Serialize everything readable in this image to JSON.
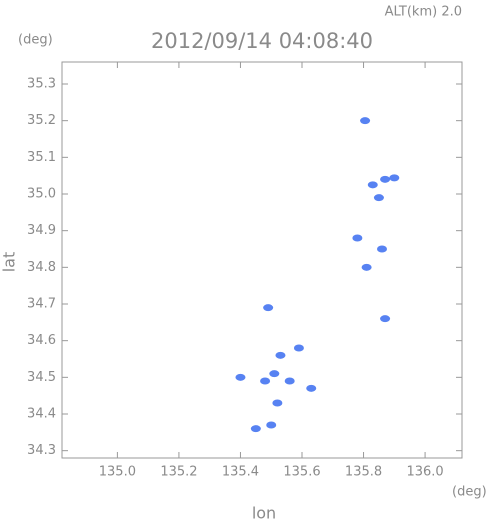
{
  "chart_data": {
    "type": "scatter",
    "title": "2012/09/14 04:08:40",
    "altitude_label": "ALT(km) 2.0",
    "y_unit": "(deg)",
    "x_unit": "(deg)",
    "xlabel": "lon",
    "ylabel": "lat",
    "x": [
      135.805,
      135.83,
      135.87,
      135.9,
      135.85,
      135.78,
      135.86,
      135.81,
      135.87,
      135.49,
      135.53,
      135.51,
      135.48,
      135.59,
      135.56,
      135.63,
      135.52,
      135.5,
      135.45,
      135.4
    ],
    "values": [
      35.2,
      35.025,
      35.04,
      35.044,
      34.99,
      34.88,
      34.85,
      34.8,
      34.66,
      34.69,
      34.56,
      34.51,
      34.49,
      34.58,
      34.49,
      34.47,
      34.43,
      34.37,
      34.36,
      34.5
    ],
    "color": "#3a6cf0",
    "xlim": [
      134.82,
      136.12
    ],
    "ylim": [
      34.28,
      35.36
    ],
    "xticks": [
      {
        "value": 135.0,
        "label": "135.0"
      },
      135.2,
      135.4,
      135.6,
      135.8,
      {
        "value": 136.0,
        "label": "136.0"
      }
    ],
    "yticks": [
      34.3,
      34.4,
      34.5,
      34.6,
      34.7,
      34.8,
      34.9,
      {
        "value": 35.0,
        "label": "35.0"
      },
      35.1,
      35.2,
      35.3
    ]
  }
}
